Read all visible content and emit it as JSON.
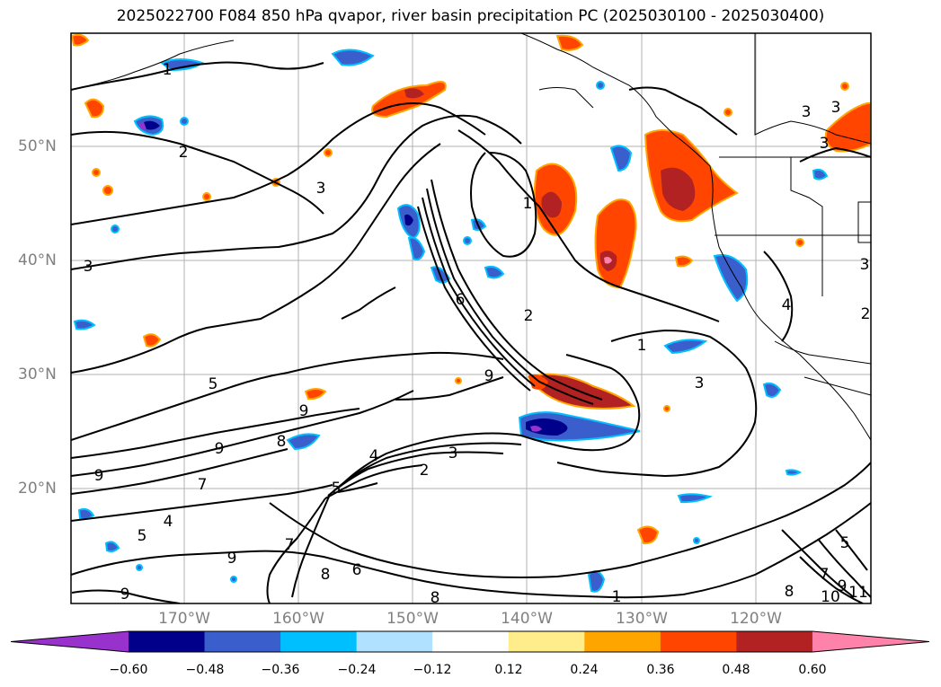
{
  "title": "2025022700 F084 850 hPa qvapor, river basin precipitation PC (2025030100 - 2025030400)",
  "lat_labels": [
    "50°N",
    "40°N",
    "30°N",
    "20°N"
  ],
  "lon_labels": [
    "170°W",
    "160°W",
    "150°W",
    "140°W",
    "130°W",
    "120°W"
  ],
  "colorbar": {
    "ticks": [
      "−0.60",
      "−0.48",
      "−0.36",
      "−0.24",
      "−0.12",
      "0.12",
      "0.24",
      "0.36",
      "0.48",
      "0.60"
    ],
    "colors": [
      "#9932CC",
      "#00008B",
      "#3A5FCD",
      "#00BFFF",
      "#B0E2FF",
      "#FFFFFF",
      "#FFEC8B",
      "#FFA500",
      "#FF4500",
      "#B22222",
      "#FF82AB"
    ]
  },
  "contour_labels": [
    "1",
    "1",
    "2",
    "3",
    "3",
    "3",
    "3",
    "3",
    "4",
    "4",
    "5",
    "5",
    "6",
    "7",
    "8",
    "9",
    "9",
    "9",
    "2",
    "3",
    "1",
    "3",
    "4",
    "2",
    "5",
    "6",
    "7",
    "8",
    "9",
    "10",
    "11",
    "1",
    "2",
    "3",
    "5",
    "7",
    "8",
    "8",
    "9",
    "9",
    "9"
  ]
}
